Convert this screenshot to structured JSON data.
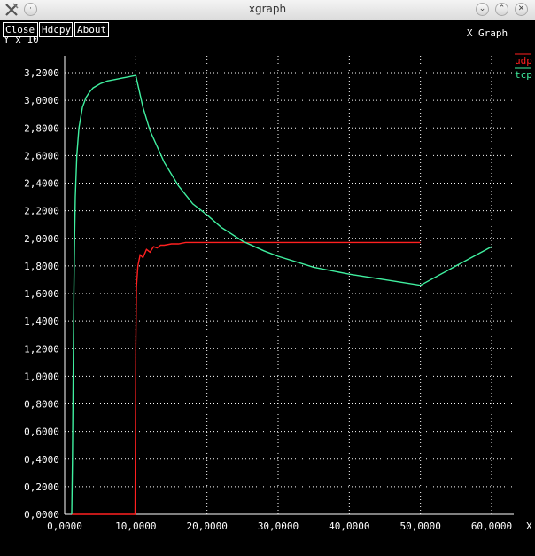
{
  "window": {
    "title": "xgraph"
  },
  "buttons": {
    "close": "Close",
    "hdcpy": "Hdcpy",
    "about": "About"
  },
  "colors": {
    "udp": "#ff2020",
    "tcp": "#40f0a0",
    "grid": "#ffffff",
    "background": "#000000"
  },
  "chart_data": {
    "type": "line",
    "title": "X Graph",
    "ylabel": "Y x 10",
    "xlabel": "X",
    "xlim": [
      0,
      60000
    ],
    "ylim": [
      0,
      3.2
    ],
    "x_ticks": [
      "0,0000",
      "10,0000",
      "20,0000",
      "30,0000",
      "40,0000",
      "50,0000",
      "60,0000"
    ],
    "y_ticks": [
      "0,0000",
      "0,2000",
      "0,4000",
      "0,6000",
      "0,8000",
      "1,0000",
      "1,2000",
      "1,4000",
      "1,6000",
      "1,8000",
      "2,0000",
      "2,2000",
      "2,4000",
      "2,6000",
      "2,8000",
      "3,0000",
      "3,2000"
    ],
    "grid": true,
    "legend_position": "top-right",
    "series": [
      {
        "name": "udp",
        "x": [
          1000,
          9900,
          10000,
          10100,
          10300,
          10600,
          11000,
          11500,
          12000,
          12500,
          13000,
          13500,
          14000,
          15000,
          16000,
          17000,
          18000,
          20000,
          25000,
          30000,
          40000,
          50000
        ],
        "y": [
          0.0,
          0.0,
          1.2,
          1.65,
          1.8,
          1.88,
          1.86,
          1.92,
          1.9,
          1.94,
          1.93,
          1.95,
          1.95,
          1.96,
          1.96,
          1.97,
          1.97,
          1.97,
          1.97,
          1.97,
          1.97,
          1.97
        ]
      },
      {
        "name": "tcp",
        "x": [
          1000,
          1100,
          1200,
          1300,
          1400,
          1500,
          1700,
          2000,
          2500,
          3000,
          3500,
          4000,
          5000,
          6000,
          7000,
          8000,
          9000,
          10000,
          11000,
          12000,
          14000,
          16000,
          18000,
          20000,
          22000,
          25000,
          28000,
          30000,
          35000,
          40000,
          45000,
          50000,
          55000,
          60000
        ],
        "y": [
          0.0,
          0.4,
          1.0,
          1.6,
          2.0,
          2.3,
          2.6,
          2.8,
          2.95,
          3.02,
          3.06,
          3.09,
          3.12,
          3.14,
          3.15,
          3.16,
          3.17,
          3.18,
          2.95,
          2.78,
          2.55,
          2.38,
          2.25,
          2.17,
          2.08,
          1.98,
          1.91,
          1.87,
          1.79,
          1.74,
          1.7,
          1.66,
          1.8,
          1.94
        ]
      }
    ]
  }
}
